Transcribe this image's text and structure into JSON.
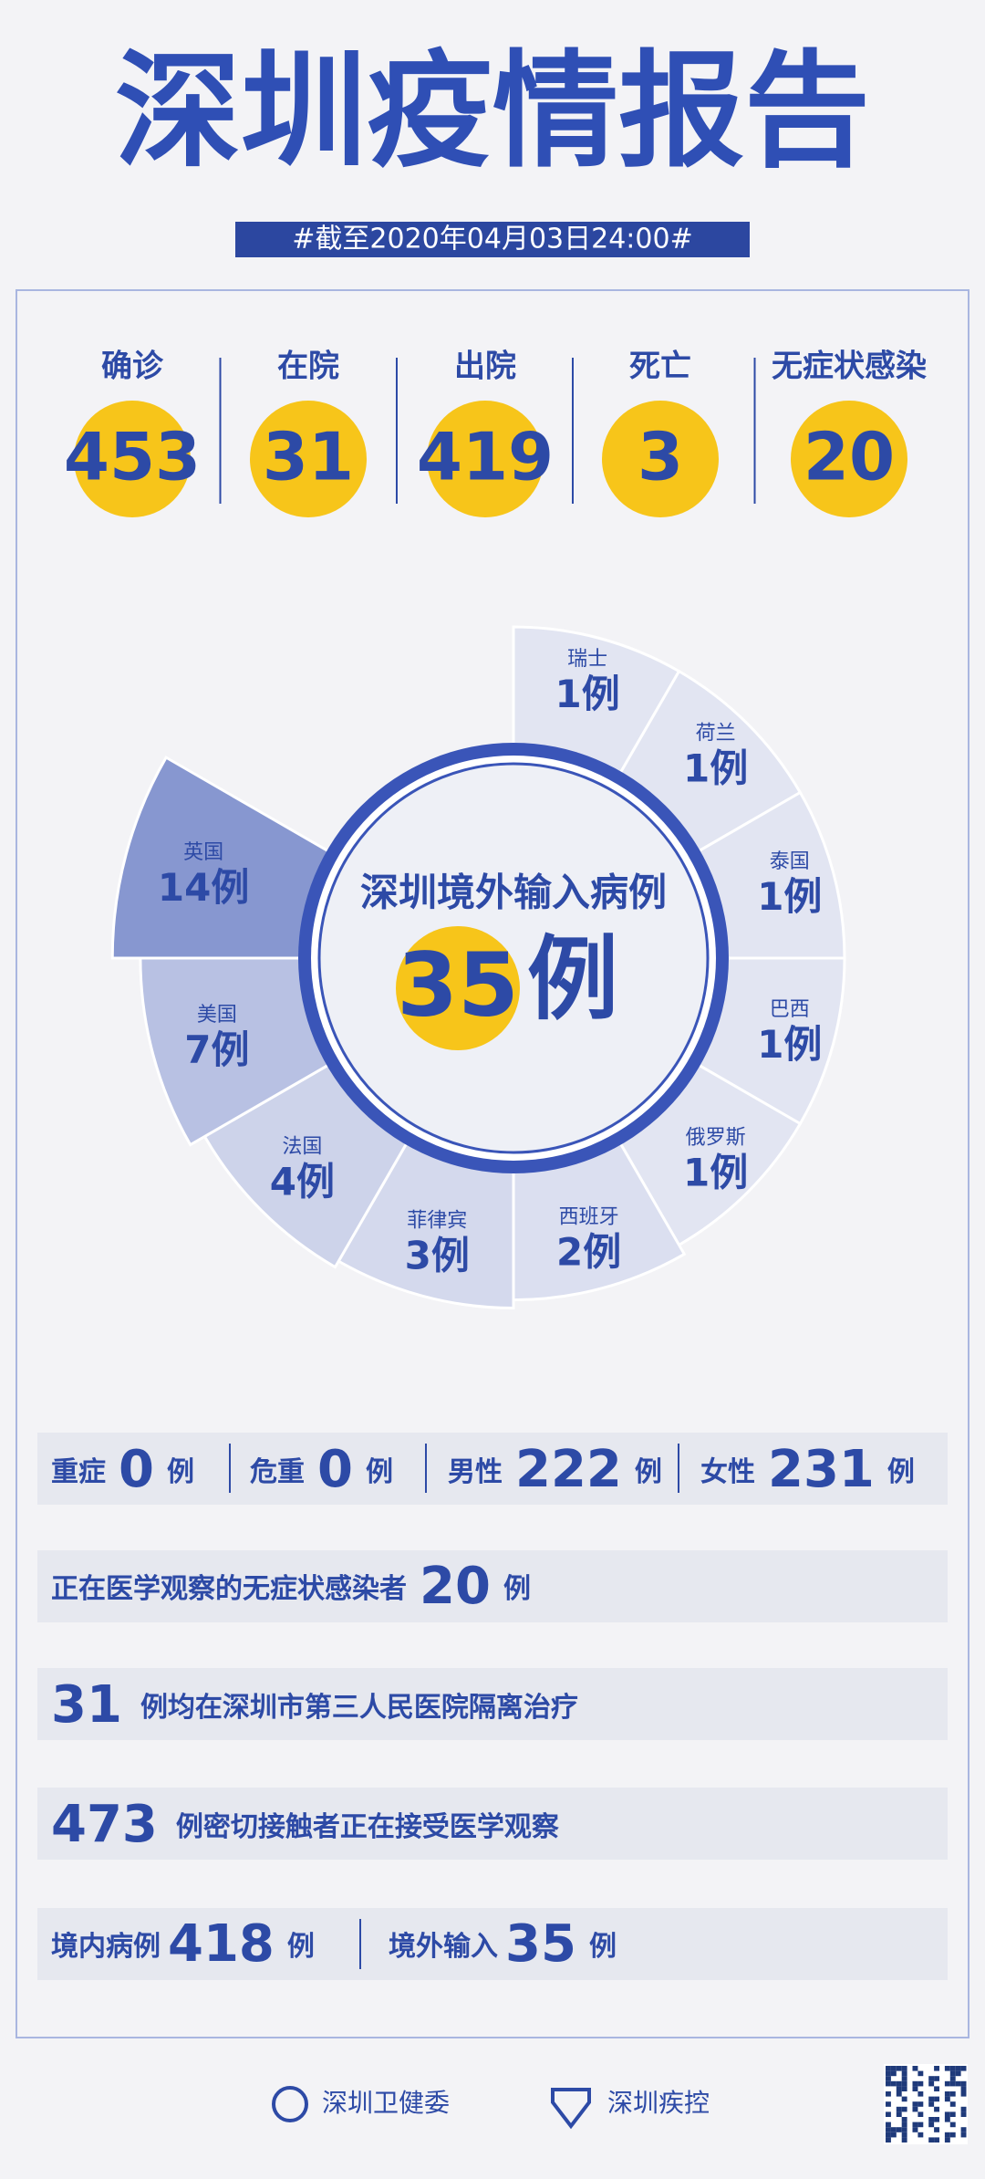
{
  "header": {
    "title": "深圳疫情报告",
    "date": "#截至2020年04月03日24:00#"
  },
  "stats": [
    {
      "label": "确诊",
      "value": 453
    },
    {
      "label": "在院",
      "value": 31
    },
    {
      "label": "出院",
      "value": 419
    },
    {
      "label": "死亡",
      "value": 3
    },
    {
      "label": "无症状感染",
      "value": 20
    }
  ],
  "imported": {
    "title": "深圳境外输入病例",
    "total": 35,
    "unit": "例",
    "countries": [
      {
        "name": "瑞士",
        "count": 1
      },
      {
        "name": "荷兰",
        "count": 1
      },
      {
        "name": "泰国",
        "count": 1
      },
      {
        "name": "巴西",
        "count": 1
      },
      {
        "name": "俄罗斯",
        "count": 1
      },
      {
        "name": "西班牙",
        "count": 2
      },
      {
        "name": "菲律宾",
        "count": 3
      },
      {
        "name": "法国",
        "count": 4
      },
      {
        "name": "美国",
        "count": 7
      },
      {
        "name": "英国",
        "count": 14
      }
    ]
  },
  "rows": {
    "severity": [
      {
        "label": "重症",
        "value": 0,
        "unit": "例"
      },
      {
        "label": "危重",
        "value": 0,
        "unit": "例"
      },
      {
        "label": "男性",
        "value": 222,
        "unit": "例"
      },
      {
        "label": "女性",
        "value": 231,
        "unit": "例"
      }
    ],
    "asymptomatic": {
      "text": "正在医学观察的无症状感染者",
      "value": 20,
      "unit": "例"
    },
    "hospital": {
      "value": 31,
      "text": "例均在深圳市第三人民医院隔离治疗"
    },
    "contacts": {
      "value": 473,
      "text": "例密切接触者正在接受医学观察"
    },
    "origin": [
      {
        "label": "境内病例",
        "value": 418,
        "unit": "例"
      },
      {
        "label": "境外输入",
        "value": 35,
        "unit": "例"
      }
    ]
  },
  "footer": {
    "logos": [
      "深圳卫健委",
      "深圳疾控"
    ]
  }
}
